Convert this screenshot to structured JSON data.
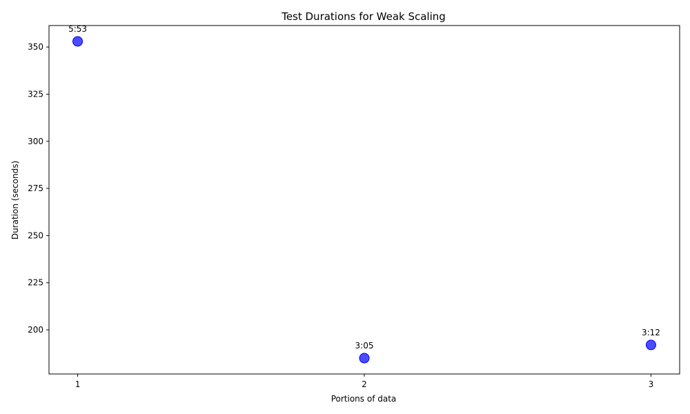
{
  "chart_data": {
    "type": "scatter",
    "title": "Test Durations for Weak Scaling",
    "xlabel": "Portions of data",
    "ylabel": "Duration (seconds)",
    "x": [
      1,
      2,
      3
    ],
    "y": [
      353,
      185,
      192
    ],
    "point_labels": [
      "5:53",
      "3:05",
      "3:12"
    ],
    "xticks": [
      1,
      2,
      3
    ],
    "yticks": [
      200,
      225,
      250,
      275,
      300,
      325,
      350
    ],
    "xlim": [
      0.9,
      3.1
    ],
    "ylim": [
      176.6,
      361.4
    ],
    "grid": false,
    "legend": "none",
    "marker_color": "#0000ff"
  }
}
